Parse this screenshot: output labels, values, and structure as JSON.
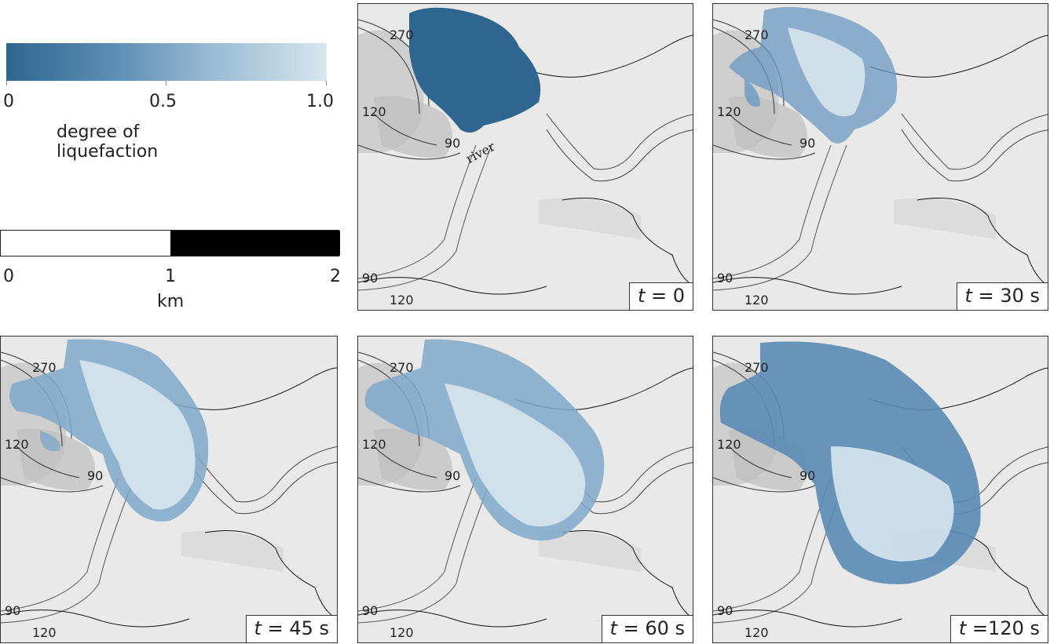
{
  "legend": {
    "colorbar": {
      "min_label": "0",
      "mid_label": "0.5",
      "max_label": "1.0",
      "caption": "degree of liquefaction",
      "colors": [
        "#2f6690",
        "#d7e6ee"
      ]
    },
    "scalebar": {
      "labels": [
        "0",
        "1",
        "2"
      ],
      "unit": "km"
    }
  },
  "map": {
    "contours": [
      "270",
      "120",
      "90",
      "90",
      "120"
    ],
    "river_label": "river"
  },
  "panels": [
    {
      "time": "= 0"
    },
    {
      "time": "= 30 s"
    },
    {
      "time": "= 45 s"
    },
    {
      "time": "= 60 s"
    },
    {
      "time": "=120 s"
    }
  ],
  "time_symbol": "t"
}
